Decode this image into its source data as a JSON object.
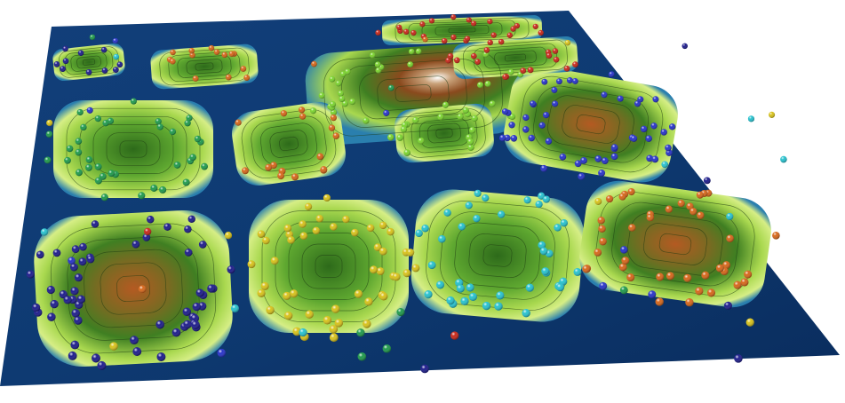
{
  "scene": {
    "description_free": true,
    "colors": {
      "background": "#ffffff",
      "low": "#0b2f63",
      "mid_low": "#1f79a8",
      "mid": "#d8ef86",
      "mid_high": "#6fbe3a",
      "high": "#2d6a1a",
      "peak": "#8a4a1e",
      "summit": "#f4f2ee",
      "contour": "#1c3a12"
    },
    "cluster_colors": {
      "navy": "#1d1c8c",
      "blue": "#2733c9",
      "green": "#1f9a4c",
      "yellow": "#d8c21b",
      "cyan": "#27c2cf",
      "orange": "#d7671a",
      "red": "#c8281a",
      "lime": "#7bd42e"
    }
  }
}
